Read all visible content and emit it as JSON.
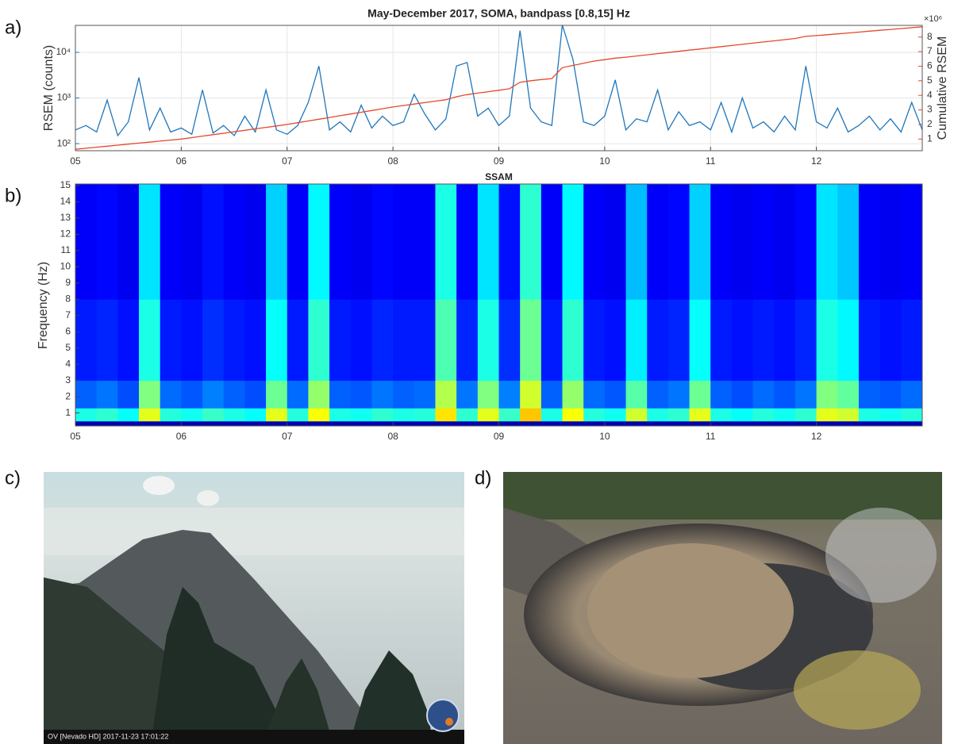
{
  "panels": [
    "a)",
    "b)",
    "c)",
    "d)"
  ],
  "photo_caption": "OV [Nevado HD] 2017-11-23 17:01:22",
  "chart_data": [
    {
      "type": "line",
      "title": "May-December 2017, SOMA, bandpass [0.8,15] Hz",
      "ylabel": "RSEM (counts)",
      "y2label": "Cumulative RSEM",
      "y2_multiplier": "×10⁶",
      "x": [
        5.0,
        5.1,
        5.2,
        5.3,
        5.4,
        5.5,
        5.6,
        5.7,
        5.8,
        5.9,
        6.0,
        6.1,
        6.2,
        6.3,
        6.4,
        6.5,
        6.6,
        6.7,
        6.8,
        6.9,
        7.0,
        7.1,
        7.2,
        7.3,
        7.4,
        7.5,
        7.6,
        7.7,
        7.8,
        7.9,
        8.0,
        8.1,
        8.2,
        8.3,
        8.4,
        8.5,
        8.6,
        8.7,
        8.8,
        8.9,
        9.0,
        9.1,
        9.2,
        9.3,
        9.4,
        9.5,
        9.6,
        9.7,
        9.8,
        9.9,
        10.0,
        10.1,
        10.2,
        10.3,
        10.4,
        10.5,
        10.6,
        10.7,
        10.8,
        10.9,
        11.0,
        11.1,
        11.2,
        11.3,
        11.4,
        11.5,
        11.6,
        11.7,
        11.8,
        11.9,
        12.0,
        12.1,
        12.2,
        12.3,
        12.4,
        12.5,
        12.6,
        12.7,
        12.8,
        12.9,
        13.0
      ],
      "xlim": [
        5,
        13
      ],
      "xticks": [
        {
          "value": 5,
          "label": "05"
        },
        {
          "value": 6,
          "label": "06"
        },
        {
          "value": 7,
          "label": "07"
        },
        {
          "value": 8,
          "label": "08"
        },
        {
          "value": 9,
          "label": "09"
        },
        {
          "value": 10,
          "label": "10"
        },
        {
          "value": 11,
          "label": "11"
        },
        {
          "value": 12,
          "label": "12"
        }
      ],
      "ylog": true,
      "ylim": [
        70,
        39000
      ],
      "yticks": [
        {
          "value": 100,
          "label": "10²"
        },
        {
          "value": 1000,
          "label": "10³"
        },
        {
          "value": 10000,
          "label": "10⁴"
        }
      ],
      "y2lim": [
        0.2,
        8.8
      ],
      "y2ticks": [
        1,
        2,
        3,
        4,
        5,
        6,
        7,
        8
      ],
      "grid": true,
      "series": [
        {
          "color": "#1f76bb",
          "values": [
            200,
            250,
            180,
            900,
            150,
            300,
            2800,
            200,
            600,
            180,
            220,
            160,
            1500,
            170,
            250,
            150,
            400,
            180,
            1500,
            200,
            160,
            250,
            800,
            5000,
            200,
            300,
            180,
            700,
            220,
            400,
            250,
            300,
            1200,
            450,
            200,
            350,
            5000,
            6000,
            400,
            600,
            250,
            400,
            30000,
            600,
            300,
            250,
            40000,
            7000,
            300,
            250,
            400,
            2500,
            200,
            350,
            300,
            1500,
            200,
            500,
            250,
            300,
            200,
            800,
            180,
            1000,
            220,
            300,
            180,
            400,
            200,
            5000,
            300,
            220,
            600,
            180,
            250,
            400,
            200,
            350,
            180,
            800,
            200
          ]
        },
        {
          "color": "#e4482b",
          "axis": "y2",
          "values": [
            0.3,
            0.37,
            0.44,
            0.51,
            0.58,
            0.65,
            0.72,
            0.79,
            0.86,
            0.93,
            1.0,
            1.1,
            1.2,
            1.3,
            1.4,
            1.5,
            1.6,
            1.7,
            1.8,
            1.9,
            2.0,
            2.12,
            2.24,
            2.36,
            2.48,
            2.6,
            2.72,
            2.84,
            2.96,
            3.08,
            3.2,
            3.3,
            3.4,
            3.5,
            3.6,
            3.7,
            3.9,
            4.05,
            4.15,
            4.25,
            4.35,
            4.45,
            4.9,
            5.0,
            5.08,
            5.15,
            5.9,
            6.05,
            6.2,
            6.35,
            6.45,
            6.55,
            6.62,
            6.7,
            6.78,
            6.86,
            6.94,
            7.02,
            7.1,
            7.18,
            7.26,
            7.34,
            7.42,
            7.5,
            7.58,
            7.66,
            7.74,
            7.82,
            7.9,
            8.05,
            8.1,
            8.16,
            8.22,
            8.28,
            8.34,
            8.4,
            8.46,
            8.52,
            8.58,
            8.64,
            8.7
          ]
        }
      ]
    },
    {
      "type": "heatmap",
      "title": "SSAM",
      "ylabel": "Frequency (Hz)",
      "colormap": "jet",
      "zlim": [
        0,
        1
      ],
      "x_bins": [
        5.0,
        5.2,
        5.4,
        5.6,
        5.8,
        6.0,
        6.2,
        6.4,
        6.6,
        6.8,
        7.0,
        7.2,
        7.4,
        7.6,
        7.8,
        8.0,
        8.2,
        8.4,
        8.6,
        8.8,
        9.0,
        9.2,
        9.4,
        9.6,
        9.8,
        10.0,
        10.2,
        10.4,
        10.6,
        10.8,
        11.0,
        11.2,
        11.4,
        11.6,
        11.8,
        12.0,
        12.2,
        12.4,
        12.6,
        12.8,
        13.0
      ],
      "y_bins": [
        0.2,
        0.5,
        1.3,
        3,
        8,
        15.1
      ],
      "z": [
        [
          0.05,
          0.05,
          0.05,
          0.05,
          0.05,
          0.05,
          0.05,
          0.05,
          0.05,
          0.05,
          0.05,
          0.05,
          0.05,
          0.05,
          0.05,
          0.05,
          0.05,
          0.05,
          0.05,
          0.05,
          0.05,
          0.05,
          0.05,
          0.05,
          0.05,
          0.05,
          0.05,
          0.05,
          0.05,
          0.05,
          0.05,
          0.05,
          0.05,
          0.05,
          0.05,
          0.05,
          0.05,
          0.05,
          0.05,
          0.05
        ],
        [
          0.4,
          0.42,
          0.38,
          0.6,
          0.41,
          0.39,
          0.43,
          0.4,
          0.38,
          0.6,
          0.41,
          0.62,
          0.4,
          0.39,
          0.42,
          0.4,
          0.41,
          0.65,
          0.42,
          0.6,
          0.43,
          0.68,
          0.4,
          0.62,
          0.41,
          0.39,
          0.58,
          0.4,
          0.42,
          0.6,
          0.4,
          0.38,
          0.41,
          0.39,
          0.42,
          0.6,
          0.58,
          0.4,
          0.39,
          0.41
        ],
        [
          0.22,
          0.24,
          0.2,
          0.5,
          0.23,
          0.21,
          0.25,
          0.22,
          0.2,
          0.48,
          0.23,
          0.52,
          0.22,
          0.21,
          0.24,
          0.22,
          0.23,
          0.55,
          0.24,
          0.5,
          0.25,
          0.58,
          0.22,
          0.52,
          0.23,
          0.21,
          0.46,
          0.22,
          0.24,
          0.48,
          0.22,
          0.2,
          0.23,
          0.21,
          0.24,
          0.5,
          0.47,
          0.22,
          0.21,
          0.23
        ],
        [
          0.15,
          0.16,
          0.14,
          0.4,
          0.15,
          0.14,
          0.17,
          0.15,
          0.14,
          0.38,
          0.15,
          0.42,
          0.15,
          0.14,
          0.16,
          0.15,
          0.15,
          0.45,
          0.16,
          0.4,
          0.17,
          0.48,
          0.15,
          0.42,
          0.15,
          0.14,
          0.36,
          0.15,
          0.16,
          0.38,
          0.15,
          0.14,
          0.15,
          0.14,
          0.16,
          0.4,
          0.37,
          0.15,
          0.14,
          0.15
        ],
        [
          0.12,
          0.13,
          0.11,
          0.35,
          0.12,
          0.11,
          0.14,
          0.12,
          0.11,
          0.33,
          0.12,
          0.37,
          0.12,
          0.11,
          0.13,
          0.12,
          0.12,
          0.4,
          0.13,
          0.35,
          0.14,
          0.42,
          0.12,
          0.37,
          0.12,
          0.11,
          0.31,
          0.12,
          0.13,
          0.33,
          0.12,
          0.11,
          0.12,
          0.11,
          0.13,
          0.35,
          0.32,
          0.12,
          0.11,
          0.12
        ]
      ],
      "xlim": [
        5,
        13
      ],
      "xticks": [
        {
          "value": 5,
          "label": "05"
        },
        {
          "value": 6,
          "label": "06"
        },
        {
          "value": 7,
          "label": "07"
        },
        {
          "value": 8,
          "label": "08"
        },
        {
          "value": 9,
          "label": "09"
        },
        {
          "value": 10,
          "label": "10"
        },
        {
          "value": 11,
          "label": "11"
        },
        {
          "value": 12,
          "label": "12"
        }
      ],
      "ylim": [
        0.2,
        15.1
      ],
      "yticks": [
        1,
        2,
        3,
        4,
        5,
        6,
        7,
        8,
        9,
        10,
        11,
        12,
        13,
        14,
        15
      ]
    }
  ]
}
